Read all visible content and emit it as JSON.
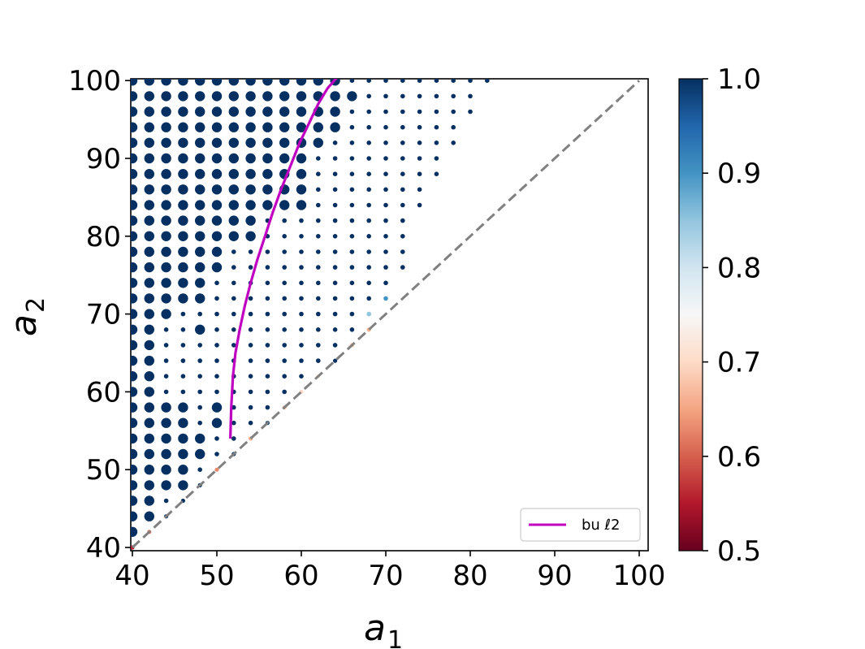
{
  "chart_data": {
    "type": "scatter",
    "title": "",
    "xlabel": "a",
    "xlabel_sub": "1",
    "ylabel": "a",
    "ylabel_sub": "2",
    "xlim": [
      40,
      101
    ],
    "ylim": [
      39.5,
      100
    ],
    "xticks": [
      "40",
      "50",
      "60",
      "70",
      "80",
      "90",
      "100"
    ],
    "yticks": [
      "40",
      "50",
      "60",
      "70",
      "80",
      "90",
      "100"
    ],
    "grid": false,
    "legend": {
      "position": "lower-right",
      "entries": [
        {
          "label": "bu ℓ2",
          "color": "#c000c0"
        }
      ]
    },
    "colorbar": {
      "min": 0.5,
      "max": 1.0,
      "ticks": [
        "0.5",
        "0.6",
        "0.7",
        "0.8",
        "0.9",
        "1.0"
      ],
      "colormap": "RdBu",
      "stops": [
        "#67001f",
        "#b2182b",
        "#d6604d",
        "#f4a582",
        "#fddbc7",
        "#f7f7f7",
        "#d1e5f0",
        "#92c5de",
        "#4393c3",
        "#2166ac",
        "#053061"
      ]
    },
    "scatter_grid": {
      "a1_start": 40,
      "a1_step": 2,
      "a2_step": 2,
      "a2_max": 100,
      "a1_limit_by_a2": [
        [
          100,
          82
        ],
        [
          96,
          80
        ],
        [
          92,
          78
        ],
        [
          88,
          76
        ],
        [
          84,
          74
        ],
        [
          80,
          72
        ],
        [
          76,
          72
        ],
        [
          72,
          70
        ],
        [
          68,
          68
        ]
      ],
      "big_dot_limit_by_a2": [
        [
          100,
          64
        ],
        [
          97,
          66
        ],
        [
          94,
          64
        ],
        [
          91,
          62
        ],
        [
          87,
          60
        ],
        [
          83,
          60
        ],
        [
          79,
          54
        ],
        [
          75,
          50
        ],
        [
          72,
          48
        ],
        [
          70,
          44
        ],
        [
          68,
          42
        ],
        [
          60,
          42
        ],
        [
          56,
          46
        ],
        [
          52,
          48
        ],
        [
          48,
          46
        ],
        [
          44,
          42
        ],
        [
          42,
          40
        ]
      ],
      "big_dot_extra": [
        [
          48,
          68
        ],
        [
          50,
          58
        ],
        [
          50,
          56
        ],
        [
          60,
          86
        ]
      ],
      "point_color_default": 1.0,
      "point_color_overrides": [
        [
          40,
          40,
          0.55
        ],
        [
          42,
          42,
          0.62
        ],
        [
          50,
          50,
          0.63
        ],
        [
          54,
          54,
          0.66
        ],
        [
          58,
          58,
          0.68
        ],
        [
          60,
          60,
          0.7
        ],
        [
          62,
          62,
          0.72
        ],
        [
          66,
          66,
          0.68
        ],
        [
          68,
          68,
          0.66
        ],
        [
          68,
          70,
          0.85
        ],
        [
          70,
          72,
          0.9
        ],
        [
          70,
          70,
          0.92
        ]
      ]
    },
    "series": [
      {
        "name": "bu ℓ2",
        "type": "line",
        "color": "#c000c0",
        "x": [
          51.6,
          51.7,
          51.9,
          52.2,
          52.7,
          53.3,
          54.0,
          54.8,
          55.7,
          56.6,
          57.6,
          58.7,
          59.8,
          60.9,
          62.0,
          63.1,
          64.3
        ],
        "y": [
          54,
          58,
          62,
          65,
          68,
          71,
          74,
          77,
          80,
          83,
          86,
          89,
          92,
          94.5,
          97,
          99,
          100.5
        ]
      },
      {
        "name": "",
        "type": "line",
        "style": "dashed",
        "color": "#808080",
        "x": [
          40,
          100
        ],
        "y": [
          40,
          100
        ]
      }
    ]
  }
}
